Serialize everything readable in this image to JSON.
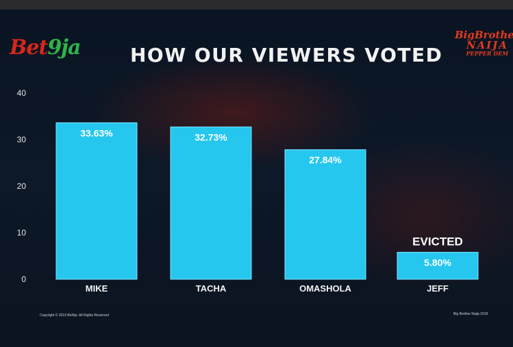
{
  "logos": {
    "left_a": "Bet",
    "left_b": "9ja",
    "right_line1": "BigBrother",
    "right_line2": "NAIJA",
    "right_line3": "PEPPER DEM"
  },
  "footer": {
    "left": "Copyright © 2019 Bet9ja. All Rights Reserved",
    "right": "Big Brother Naija 2019"
  },
  "colors": {
    "bar": "#25c7ee",
    "background": "#0d1828",
    "accent_red": "#d8261c"
  },
  "chart_data": {
    "type": "bar",
    "title": "HOW OUR VIEWERS VOTED",
    "categories": [
      "MIKE",
      "TACHA",
      "OMASHOLA",
      "JEFF"
    ],
    "values": [
      33.63,
      32.73,
      27.84,
      5.8
    ],
    "value_labels": [
      "33.63%",
      "32.73%",
      "27.84%",
      "5.80%"
    ],
    "yticks": [
      0,
      10,
      20,
      30,
      40
    ],
    "ylim": [
      0,
      40
    ],
    "grid": false,
    "annotations": [
      {
        "category": "JEFF",
        "text": "EVICTED"
      }
    ]
  }
}
